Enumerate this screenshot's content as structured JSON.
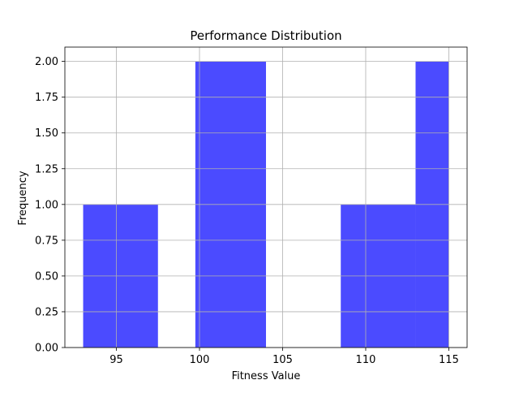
{
  "chart_data": {
    "type": "bar",
    "title": "Performance Distribution",
    "xlabel": "Fitness Value",
    "ylabel": "Frequency",
    "bins": [
      {
        "x0": 93.0,
        "x1": 97.5,
        "count": 1
      },
      {
        "x0": 97.5,
        "x1": 99.75,
        "count": 0
      },
      {
        "x0": 99.75,
        "x1": 104.0,
        "count": 2
      },
      {
        "x0": 104.0,
        "x1": 108.5,
        "count": 0
      },
      {
        "x0": 108.5,
        "x1": 113.0,
        "count": 1
      },
      {
        "x0": 113.0,
        "x1": 115.0,
        "count": 2
      }
    ],
    "xlim": [
      91.9,
      116.1
    ],
    "ylim": [
      0.0,
      2.1
    ],
    "xticks": [
      95,
      100,
      105,
      110,
      115
    ],
    "yticks": [
      0.0,
      0.25,
      0.5,
      0.75,
      1.0,
      1.25,
      1.5,
      1.75,
      2.0
    ],
    "xtick_labels": [
      "95",
      "100",
      "105",
      "110",
      "115"
    ],
    "ytick_labels": [
      "0.00",
      "0.25",
      "0.50",
      "0.75",
      "1.00",
      "1.25",
      "1.50",
      "1.75",
      "2.00"
    ],
    "grid": true,
    "bar_color": "#4b4bff",
    "grid_color": "#b0b0b0",
    "axis_color": "#000000"
  }
}
